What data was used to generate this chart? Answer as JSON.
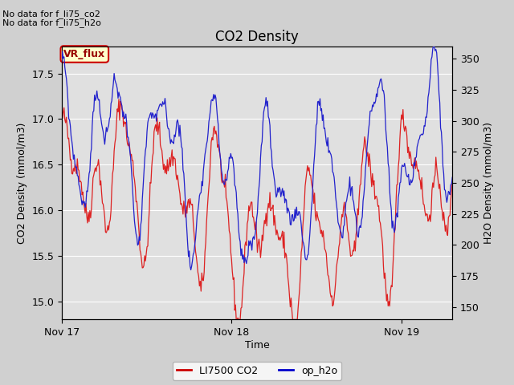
{
  "title": "CO2 Density",
  "xlabel": "Time",
  "ylabel_left": "CO2 Density (mmol/m3)",
  "ylabel_right": "H2O Density (mmol/m3)",
  "ylim_left": [
    14.8,
    17.8
  ],
  "ylim_right": [
    140,
    360
  ],
  "xtick_labels": [
    "Nov 17",
    "Nov 18",
    "Nov 19"
  ],
  "xtick_positions": [
    0,
    1,
    2
  ],
  "xlim": [
    0,
    2.3
  ],
  "legend_labels": [
    "LI7500 CO2",
    "op_h2o"
  ],
  "legend_colors": [
    "#cc0000",
    "#0000cc"
  ],
  "top_text_1": "No data for f_li75_co2",
  "top_text_2": "No data for f_li75_h2o",
  "box_label": "VR_flux",
  "box_facecolor": "#ffffcc",
  "box_edgecolor": "#cc0000",
  "box_textcolor": "#990000",
  "fig_facecolor": "#d0d0d0",
  "plot_facecolor": "#e0e0e0",
  "grid_color": "#ffffff",
  "line_color_co2": "#dd2222",
  "line_color_h2o": "#2222cc",
  "title_fontsize": 12,
  "axis_fontsize": 9,
  "tick_fontsize": 9,
  "legend_fontsize": 9
}
